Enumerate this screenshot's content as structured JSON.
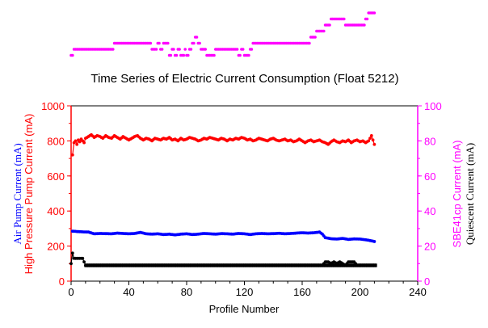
{
  "chart_data": {
    "type": "scatter",
    "title": "Time Series of Electric Current Consumption (Float 5212)",
    "xlabel": "Profile Number",
    "xlim": [
      0,
      240
    ],
    "x_ticks": [
      "0",
      "40",
      "80",
      "120",
      "160",
      "200",
      "240"
    ],
    "left_axis": {
      "ylim": [
        0,
        1000
      ],
      "ticks": [
        "0",
        "200",
        "400",
        "600",
        "800",
        "1000"
      ],
      "labels": [
        {
          "text": "High Pressure Pump Current (mA)",
          "color": "#ff0000"
        },
        {
          "text": "Air Pump Current (mA)",
          "color": "#0000ff"
        }
      ]
    },
    "right_axis": {
      "ylim": [
        0,
        100
      ],
      "ticks": [
        "0",
        "20",
        "40",
        "60",
        "80",
        "100"
      ],
      "labels": [
        {
          "text": "SBE41cp Current (mA)",
          "color": "#ff00ff"
        },
        {
          "text": "Quiescent Current (mA)",
          "color": "#000000"
        }
      ]
    },
    "colors": {
      "high_pressure": "#ff0000",
      "air_pump": "#0000ff",
      "quiescent": "#000000",
      "sbe41": "#ff00ff"
    },
    "series": [
      {
        "key": "high_pressure",
        "axis": "left",
        "points": [
          [
            1,
            720
          ],
          [
            2,
            790
          ],
          [
            3,
            800
          ],
          [
            4,
            780
          ],
          [
            5,
            805
          ],
          [
            6,
            795
          ],
          [
            7,
            810
          ],
          [
            8,
            800
          ],
          [
            9,
            790
          ],
          [
            10,
            815
          ],
          [
            12,
            825
          ],
          [
            14,
            835
          ],
          [
            16,
            820
          ],
          [
            18,
            830
          ],
          [
            20,
            825
          ],
          [
            22,
            815
          ],
          [
            24,
            830
          ],
          [
            26,
            820
          ],
          [
            28,
            815
          ],
          [
            30,
            830
          ],
          [
            32,
            820
          ],
          [
            34,
            810
          ],
          [
            36,
            825
          ],
          [
            38,
            815
          ],
          [
            40,
            805
          ],
          [
            42,
            815
          ],
          [
            44,
            825
          ],
          [
            46,
            830
          ],
          [
            48,
            815
          ],
          [
            50,
            805
          ],
          [
            52,
            815
          ],
          [
            54,
            810
          ],
          [
            56,
            800
          ],
          [
            58,
            815
          ],
          [
            60,
            810
          ],
          [
            62,
            805
          ],
          [
            64,
            815
          ],
          [
            66,
            810
          ],
          [
            68,
            820
          ],
          [
            70,
            805
          ],
          [
            72,
            810
          ],
          [
            74,
            800
          ],
          [
            76,
            815
          ],
          [
            78,
            805
          ],
          [
            80,
            810
          ],
          [
            82,
            820
          ],
          [
            84,
            815
          ],
          [
            86,
            810
          ],
          [
            88,
            800
          ],
          [
            90,
            805
          ],
          [
            92,
            815
          ],
          [
            94,
            810
          ],
          [
            96,
            820
          ],
          [
            98,
            815
          ],
          [
            100,
            810
          ],
          [
            102,
            805
          ],
          [
            104,
            815
          ],
          [
            106,
            810
          ],
          [
            108,
            800
          ],
          [
            110,
            810
          ],
          [
            112,
            805
          ],
          [
            114,
            815
          ],
          [
            116,
            810
          ],
          [
            118,
            820
          ],
          [
            120,
            815
          ],
          [
            122,
            805
          ],
          [
            124,
            810
          ],
          [
            126,
            800
          ],
          [
            128,
            805
          ],
          [
            130,
            815
          ],
          [
            132,
            810
          ],
          [
            134,
            805
          ],
          [
            136,
            800
          ],
          [
            138,
            810
          ],
          [
            140,
            815
          ],
          [
            142,
            805
          ],
          [
            144,
            800
          ],
          [
            146,
            805
          ],
          [
            148,
            810
          ],
          [
            150,
            800
          ],
          [
            152,
            805
          ],
          [
            154,
            795
          ],
          [
            156,
            800
          ],
          [
            158,
            810
          ],
          [
            160,
            800
          ],
          [
            162,
            790
          ],
          [
            164,
            800
          ],
          [
            166,
            805
          ],
          [
            168,
            795
          ],
          [
            170,
            800
          ],
          [
            172,
            805
          ],
          [
            174,
            795
          ],
          [
            176,
            790
          ],
          [
            178,
            780
          ],
          [
            180,
            795
          ],
          [
            182,
            805
          ],
          [
            184,
            795
          ],
          [
            186,
            790
          ],
          [
            188,
            800
          ],
          [
            190,
            795
          ],
          [
            192,
            805
          ],
          [
            194,
            790
          ],
          [
            196,
            800
          ],
          [
            198,
            805
          ],
          [
            200,
            795
          ],
          [
            202,
            800
          ],
          [
            204,
            790
          ],
          [
            206,
            800
          ],
          [
            208,
            830
          ],
          [
            210,
            780
          ]
        ]
      },
      {
        "key": "air_pump",
        "axis": "left",
        "points": [
          [
            1,
            285
          ],
          [
            4,
            283
          ],
          [
            8,
            281
          ],
          [
            12,
            280
          ],
          [
            16,
            270
          ],
          [
            20,
            272
          ],
          [
            24,
            271
          ],
          [
            28,
            270
          ],
          [
            32,
            274
          ],
          [
            36,
            272
          ],
          [
            40,
            270
          ],
          [
            44,
            272
          ],
          [
            48,
            278
          ],
          [
            52,
            270
          ],
          [
            56,
            268
          ],
          [
            60,
            270
          ],
          [
            64,
            266
          ],
          [
            68,
            268
          ],
          [
            72,
            264
          ],
          [
            76,
            268
          ],
          [
            80,
            270
          ],
          [
            84,
            266
          ],
          [
            88,
            268
          ],
          [
            92,
            272
          ],
          [
            96,
            270
          ],
          [
            100,
            268
          ],
          [
            104,
            271
          ],
          [
            108,
            270
          ],
          [
            112,
            268
          ],
          [
            116,
            272
          ],
          [
            120,
            270
          ],
          [
            124,
            266
          ],
          [
            128,
            270
          ],
          [
            132,
            272
          ],
          [
            136,
            270
          ],
          [
            140,
            271
          ],
          [
            144,
            273
          ],
          [
            148,
            270
          ],
          [
            152,
            272
          ],
          [
            156,
            274
          ],
          [
            160,
            276
          ],
          [
            164,
            274
          ],
          [
            168,
            276
          ],
          [
            172,
            280
          ],
          [
            174,
            268
          ],
          [
            176,
            248
          ],
          [
            180,
            242
          ],
          [
            184,
            240
          ],
          [
            188,
            244
          ],
          [
            192,
            238
          ],
          [
            196,
            241
          ],
          [
            200,
            240
          ],
          [
            204,
            236
          ],
          [
            208,
            230
          ],
          [
            210,
            226
          ]
        ]
      },
      {
        "key": "quiescent",
        "axis": "right",
        "points": [
          [
            0,
            10
          ],
          [
            1,
            16
          ],
          [
            2,
            13
          ],
          [
            4,
            13
          ],
          [
            6,
            13
          ],
          [
            8,
            13
          ],
          [
            10,
            9
          ],
          [
            20,
            9
          ],
          [
            40,
            9
          ],
          [
            60,
            9
          ],
          [
            80,
            9
          ],
          [
            100,
            9
          ],
          [
            120,
            9
          ],
          [
            140,
            9
          ],
          [
            160,
            9
          ],
          [
            172,
            9
          ],
          [
            174,
            9
          ],
          [
            176,
            11
          ],
          [
            178,
            11
          ],
          [
            180,
            10
          ],
          [
            182,
            11
          ],
          [
            184,
            10
          ],
          [
            186,
            11
          ],
          [
            188,
            10
          ],
          [
            190,
            9
          ],
          [
            192,
            11
          ],
          [
            194,
            11
          ],
          [
            196,
            11
          ],
          [
            198,
            9
          ],
          [
            200,
            9
          ],
          [
            204,
            9
          ],
          [
            208,
            9
          ],
          [
            210,
            9
          ]
        ],
        "fill_range": [
          10,
          211
        ],
        "fill_value": 9
      }
    ],
    "sbe41_strip": {
      "axis": "right_rescaled",
      "description_free": true,
      "points": [
        [
          0,
          1
        ],
        [
          2,
          2
        ],
        [
          4,
          2
        ],
        [
          8,
          2
        ],
        [
          12,
          2
        ],
        [
          16,
          2
        ],
        [
          20,
          2
        ],
        [
          24,
          2
        ],
        [
          28,
          2
        ],
        [
          30,
          3
        ],
        [
          34,
          3
        ],
        [
          40,
          3
        ],
        [
          46,
          3
        ],
        [
          50,
          3
        ],
        [
          54,
          3
        ],
        [
          56,
          2
        ],
        [
          58,
          2
        ],
        [
          60,
          3
        ],
        [
          62,
          2
        ],
        [
          64,
          3
        ],
        [
          66,
          3
        ],
        [
          68,
          1
        ],
        [
          70,
          2
        ],
        [
          72,
          1
        ],
        [
          74,
          2
        ],
        [
          76,
          1
        ],
        [
          78,
          1
        ],
        [
          79,
          2
        ],
        [
          80,
          1
        ],
        [
          82,
          2
        ],
        [
          84,
          3
        ],
        [
          86,
          4
        ],
        [
          88,
          3
        ],
        [
          90,
          2
        ],
        [
          92,
          2
        ],
        [
          94,
          1
        ],
        [
          96,
          1
        ],
        [
          98,
          1
        ],
        [
          100,
          2
        ],
        [
          104,
          2
        ],
        [
          108,
          2
        ],
        [
          112,
          2
        ],
        [
          116,
          1
        ],
        [
          118,
          2
        ],
        [
          120,
          1
        ],
        [
          122,
          1
        ],
        [
          124,
          2
        ],
        [
          126,
          3
        ],
        [
          130,
          3
        ],
        [
          136,
          3
        ],
        [
          140,
          3
        ],
        [
          144,
          3
        ],
        [
          148,
          3
        ],
        [
          152,
          3
        ],
        [
          156,
          3
        ],
        [
          160,
          3
        ],
        [
          164,
          3
        ],
        [
          166,
          4
        ],
        [
          168,
          4
        ],
        [
          170,
          5
        ],
        [
          172,
          5
        ],
        [
          174,
          5
        ],
        [
          176,
          6
        ],
        [
          178,
          6
        ],
        [
          180,
          7
        ],
        [
          182,
          7
        ],
        [
          184,
          7
        ],
        [
          186,
          7
        ],
        [
          188,
          7
        ],
        [
          190,
          6
        ],
        [
          192,
          6
        ],
        [
          194,
          6
        ],
        [
          196,
          6
        ],
        [
          198,
          6
        ],
        [
          200,
          6
        ],
        [
          202,
          6
        ],
        [
          204,
          7
        ],
        [
          206,
          8
        ],
        [
          208,
          8
        ],
        [
          210,
          8
        ]
      ],
      "ylim": [
        0,
        8
      ]
    }
  }
}
